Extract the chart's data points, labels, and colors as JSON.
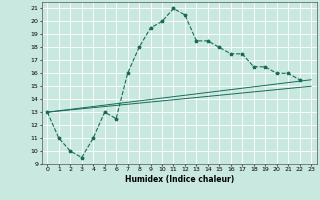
{
  "title": "",
  "xlabel": "Humidex (Indice chaleur)",
  "bg_color": "#c8e8e0",
  "grid_color": "#ffffff",
  "line_color": "#1a6b5a",
  "xlim": [
    -0.5,
    23.5
  ],
  "ylim": [
    9,
    21.5
  ],
  "xticks": [
    0,
    1,
    2,
    3,
    4,
    5,
    6,
    7,
    8,
    9,
    10,
    11,
    12,
    13,
    14,
    15,
    16,
    17,
    18,
    19,
    20,
    21,
    22,
    23
  ],
  "yticks": [
    9,
    10,
    11,
    12,
    13,
    14,
    15,
    16,
    17,
    18,
    19,
    20,
    21
  ],
  "curve_x": [
    0,
    1,
    2,
    3,
    4,
    5,
    6,
    7,
    8,
    9,
    10,
    11,
    12,
    13,
    14,
    15,
    16,
    17,
    18,
    19,
    20,
    21,
    22
  ],
  "curve_y": [
    13,
    11,
    10,
    9.5,
    11,
    13,
    12.5,
    16,
    18,
    19.5,
    20,
    21,
    20.5,
    18.5,
    18.5,
    18,
    17.5,
    17.5,
    16.5,
    16.5,
    16,
    16,
    15.5
  ],
  "line2_x": [
    0,
    23
  ],
  "line2_y": [
    13,
    15.5
  ],
  "line3_x": [
    0,
    23
  ],
  "line3_y": [
    13,
    15.0
  ]
}
